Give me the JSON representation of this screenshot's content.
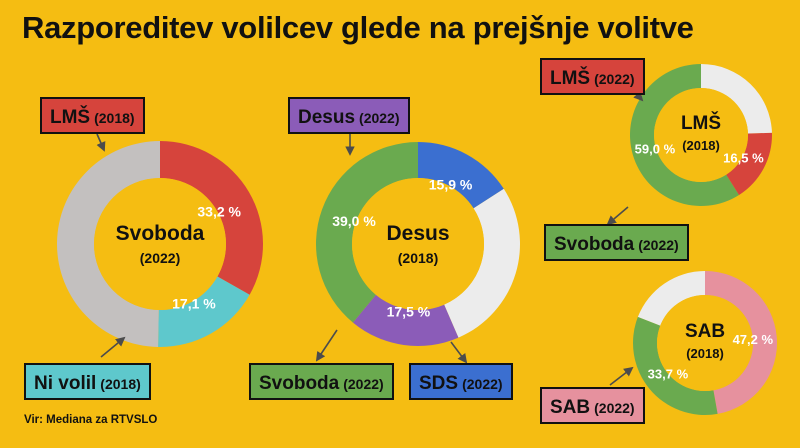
{
  "title": "Razporeditev volilcev glede na prejšnje volitve",
  "source": "Vir: Mediana za RTVSLO",
  "colors": {
    "background": "#f5bd12",
    "svoboda": "#6aaa4f",
    "lms": "#d6443c",
    "desus": "#8b5cb8",
    "sds": "#3b6fd0",
    "ni_volil": "#5ec8cc",
    "sab": "#e6919e",
    "other": "#c3c0bf",
    "other_light": "#ececec"
  },
  "chart_data": [
    {
      "type": "pie",
      "center_title": "Svoboda",
      "center_subtitle": "(2022)",
      "slices": [
        {
          "label": "LMŠ",
          "year": "(2018)",
          "value": 33.2,
          "value_label": "33,2 %",
          "color": "#d6443c"
        },
        {
          "label": "Ni volil",
          "year": "(2018)",
          "value": 17.1,
          "value_label": "17,1 %",
          "color": "#5ec8cc"
        },
        {
          "label": "",
          "year": "",
          "value": 49.7,
          "value_label": "",
          "color": "#c3c0bf"
        }
      ]
    },
    {
      "type": "pie",
      "center_title": "Desus",
      "center_subtitle": "(2018)",
      "slices": [
        {
          "label": "SDS",
          "year": "(2022)",
          "value": 15.9,
          "value_label": "15,9 %",
          "color": "#3b6fd0"
        },
        {
          "label": "Svoboda",
          "year": "(2022)",
          "value": 39.0,
          "value_label": "39,0 %",
          "color": "#6aaa4f"
        },
        {
          "label": "Desus",
          "year": "(2022)",
          "value": 17.5,
          "value_label": "17,5 %",
          "color": "#8b5cb8"
        },
        {
          "label": "",
          "year": "",
          "value": 27.6,
          "value_label": "",
          "color": "#ececec"
        }
      ]
    },
    {
      "type": "pie",
      "center_title": "LMŠ",
      "center_subtitle": "(2018)",
      "slices": [
        {
          "label": "Svoboda",
          "year": "(2022)",
          "value": 59.0,
          "value_label": "59,0 %",
          "color": "#6aaa4f"
        },
        {
          "label": "LMŠ",
          "year": "(2022)",
          "value": 16.5,
          "value_label": "16,5 %",
          "color": "#d6443c"
        },
        {
          "label": "",
          "year": "",
          "value": 24.5,
          "value_label": "",
          "color": "#ececec"
        }
      ]
    },
    {
      "type": "pie",
      "center_title": "SAB",
      "center_subtitle": "(2018)",
      "slices": [
        {
          "label": "SAB",
          "year": "(2022)",
          "value": 47.2,
          "value_label": "47,2 %",
          "color": "#e6919e"
        },
        {
          "label": "Svoboda",
          "year": "(2022)",
          "value": 33.7,
          "value_label": "33,7 %",
          "color": "#6aaa4f"
        },
        {
          "label": "",
          "year": "",
          "value": 19.1,
          "value_label": "",
          "color": "#ececec"
        }
      ]
    }
  ]
}
